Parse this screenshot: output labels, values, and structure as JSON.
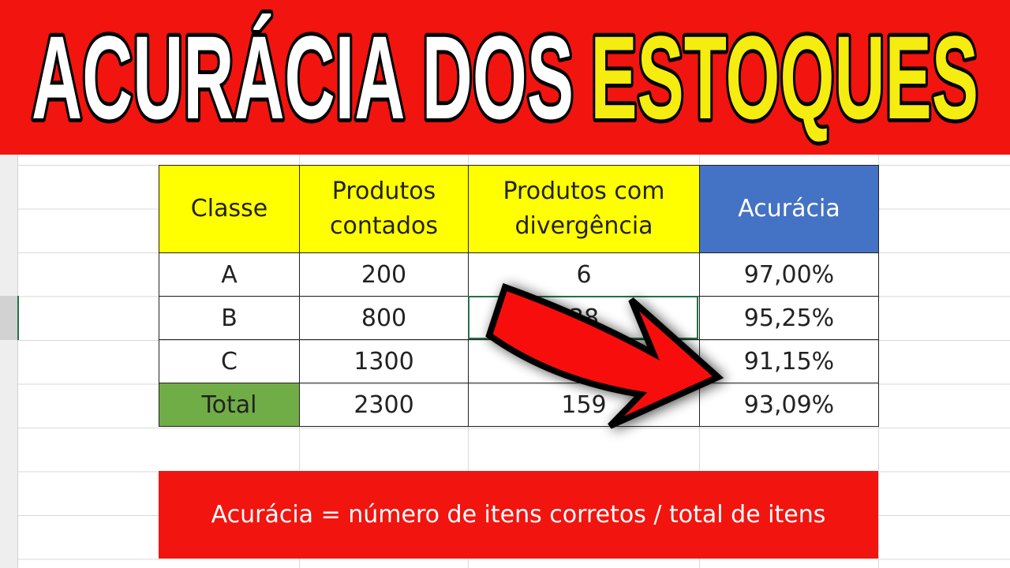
{
  "title": {
    "part1": "ACURÁCIA DOS",
    "part2": "ESTOQUES"
  },
  "table": {
    "headers": [
      "Classe",
      "Produtos contados",
      "Produtos com divergência",
      "Acurácia"
    ],
    "rows": [
      {
        "classe": "A",
        "contados": "200",
        "divergencia": "6",
        "acuracia": "97,00%"
      },
      {
        "classe": "B",
        "contados": "800",
        "divergencia": "38",
        "acuracia": "95,25%"
      },
      {
        "classe": "C",
        "contados": "1300",
        "divergencia": "",
        "acuracia": "91,15%"
      },
      {
        "classe": "Total",
        "contados": "2300",
        "divergencia": "159",
        "acuracia": "93,09%"
      }
    ]
  },
  "formula": "Acurácia = número de itens corretos / total de itens",
  "colors": {
    "banner": "#f2140f",
    "highlight": "#f5ec10",
    "header_yellow": "#ffff00",
    "header_blue": "#4472c4",
    "total_green": "#70ad47"
  },
  "icons": [
    "arrow-icon"
  ]
}
